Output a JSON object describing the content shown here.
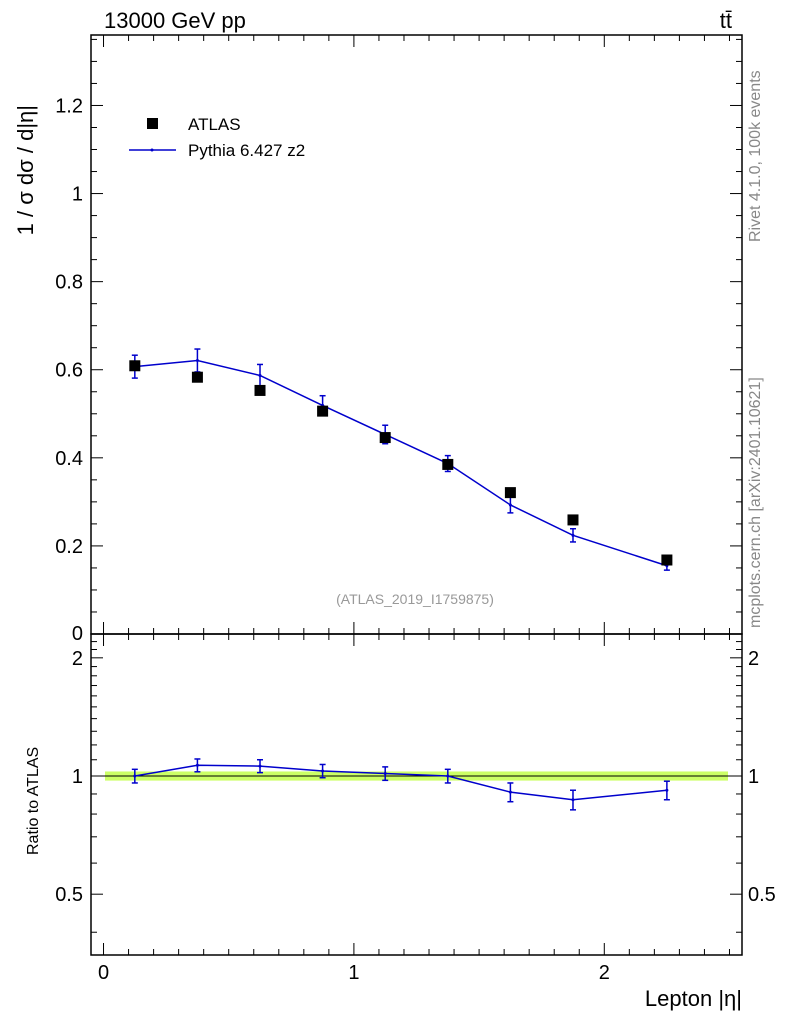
{
  "header": {
    "left_title": "13000 GeV pp",
    "right_title": "tt̄"
  },
  "side_text": {
    "rivet": "Rivet 4.1.0,  100k events",
    "mcplots": "mcplots.cern.ch [arXiv:2401.10621]"
  },
  "analysis_label": "(ATLAS_2019_I1759875)",
  "colors": {
    "mc": "#0000cc",
    "data": "#000000",
    "band": "#ccff66"
  },
  "chart_data": [
    {
      "type": "scatter",
      "panel": "main",
      "ylabel": "1 / σ  dσ / d|η|",
      "xlabel": "",
      "xlim": [
        -0.05,
        2.55
      ],
      "ylim": [
        0,
        1.36
      ],
      "yticks": [
        0.2,
        0.4,
        0.6,
        0.8,
        1,
        1.2
      ],
      "ytick_labels": [
        "0.2",
        "0.4",
        "0.6",
        "0.8",
        "1",
        "1.2"
      ],
      "bottom_partial_label": "0",
      "legend": {
        "placement": "top-left",
        "entries": [
          "ATLAS",
          "Pythia 6.427 z2"
        ]
      },
      "series": [
        {
          "name": "ATLAS",
          "style": "markers",
          "x": [
            0.125,
            0.375,
            0.625,
            0.875,
            1.125,
            1.375,
            1.625,
            1.875,
            2.25
          ],
          "y": [
            0.609,
            0.583,
            0.553,
            0.506,
            0.446,
            0.385,
            0.321,
            0.259,
            0.168
          ]
        },
        {
          "name": "Pythia 6.427 z2",
          "style": "line-errorbars",
          "x": [
            0.125,
            0.375,
            0.625,
            0.875,
            1.125,
            1.375,
            1.625,
            1.875,
            2.25
          ],
          "y": [
            0.607,
            0.621,
            0.587,
            0.519,
            0.453,
            0.387,
            0.293,
            0.224,
            0.155
          ],
          "err": [
            0.026,
            0.026,
            0.025,
            0.022,
            0.021,
            0.018,
            0.018,
            0.015,
            0.01
          ]
        }
      ]
    },
    {
      "type": "line",
      "panel": "ratio",
      "ylabel": "Ratio to ATLAS",
      "xlabel": "Lepton |η|",
      "xlim": [
        -0.05,
        2.55
      ],
      "ylim": [
        0.35,
        2.3
      ],
      "yticks": [
        0.5,
        1,
        2
      ],
      "ytick_labels": [
        "0.5",
        "1",
        "2"
      ],
      "xticks": [
        0,
        1,
        2
      ],
      "xtick_labels": [
        "0",
        "1",
        "2"
      ],
      "reference": 1,
      "band": [
        0.985,
        1.015
      ],
      "series": [
        {
          "name": "Pythia 6.427 z2",
          "x": [
            0.125,
            0.375,
            0.625,
            0.875,
            1.125,
            1.375,
            1.625,
            1.875,
            2.25
          ],
          "y": [
            1.0,
            1.065,
            1.06,
            1.03,
            1.015,
            1.0,
            0.91,
            0.87,
            0.92
          ],
          "err": [
            0.04,
            0.04,
            0.04,
            0.04,
            0.04,
            0.04,
            0.05,
            0.05,
            0.05
          ]
        }
      ]
    }
  ]
}
